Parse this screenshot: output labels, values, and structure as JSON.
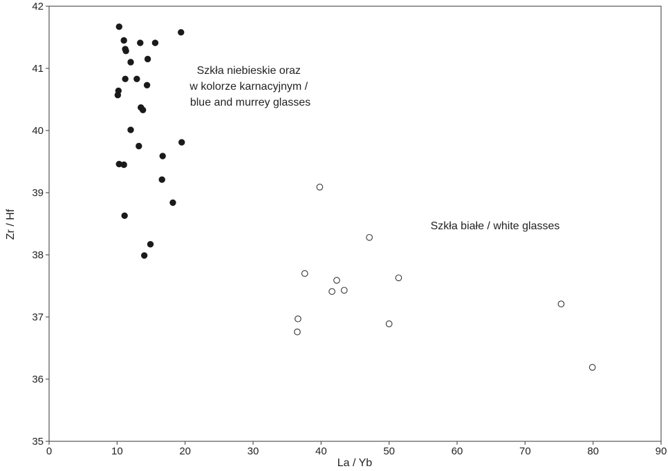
{
  "chart_data": {
    "type": "scatter",
    "xlabel": "La / Yb",
    "ylabel": "Zr / Hf",
    "xlim": [
      0,
      90
    ],
    "ylim": [
      35,
      42
    ],
    "xticks": [
      0,
      10,
      20,
      30,
      40,
      50,
      60,
      70,
      80,
      90
    ],
    "yticks": [
      35,
      36,
      37,
      38,
      39,
      40,
      41,
      42
    ],
    "grid": false,
    "series": [
      {
        "marker": "filled-circle",
        "color": "#1a1a1a",
        "points": [
          [
            10.3,
            41.67
          ],
          [
            11.0,
            41.45
          ],
          [
            11.2,
            41.31
          ],
          [
            11.3,
            41.28
          ],
          [
            13.4,
            41.41
          ],
          [
            15.6,
            41.41
          ],
          [
            19.4,
            41.58
          ],
          [
            12.0,
            41.1
          ],
          [
            14.5,
            41.15
          ],
          [
            11.2,
            40.83
          ],
          [
            12.9,
            40.83
          ],
          [
            14.4,
            40.73
          ],
          [
            10.2,
            40.64
          ],
          [
            10.1,
            40.57
          ],
          [
            13.5,
            40.37
          ],
          [
            13.8,
            40.33
          ],
          [
            12.0,
            40.01
          ],
          [
            13.2,
            39.75
          ],
          [
            19.5,
            39.81
          ],
          [
            16.7,
            39.59
          ],
          [
            10.3,
            39.46
          ],
          [
            11.0,
            39.45
          ],
          [
            16.6,
            39.21
          ],
          [
            18.2,
            38.84
          ],
          [
            11.1,
            38.63
          ],
          [
            14.9,
            38.17
          ],
          [
            14.0,
            37.99
          ]
        ]
      },
      {
        "marker": "open-circle",
        "color": "#333333",
        "points": [
          [
            39.8,
            39.09
          ],
          [
            47.1,
            38.28
          ],
          [
            37.6,
            37.7
          ],
          [
            42.3,
            37.59
          ],
          [
            51.4,
            37.63
          ],
          [
            41.6,
            37.41
          ],
          [
            43.4,
            37.43
          ],
          [
            36.6,
            36.97
          ],
          [
            36.5,
            36.76
          ],
          [
            50.0,
            36.89
          ],
          [
            75.3,
            37.21
          ],
          [
            79.9,
            36.19
          ]
        ]
      }
    ],
    "annotations": [
      {
        "lines": [
          "Szkła niebieskie oraz",
          "w kolorze karnacyjnym /",
          "blue and murrey glasses"
        ]
      },
      {
        "lines": [
          "Szkła białe / white glasses"
        ]
      }
    ]
  }
}
